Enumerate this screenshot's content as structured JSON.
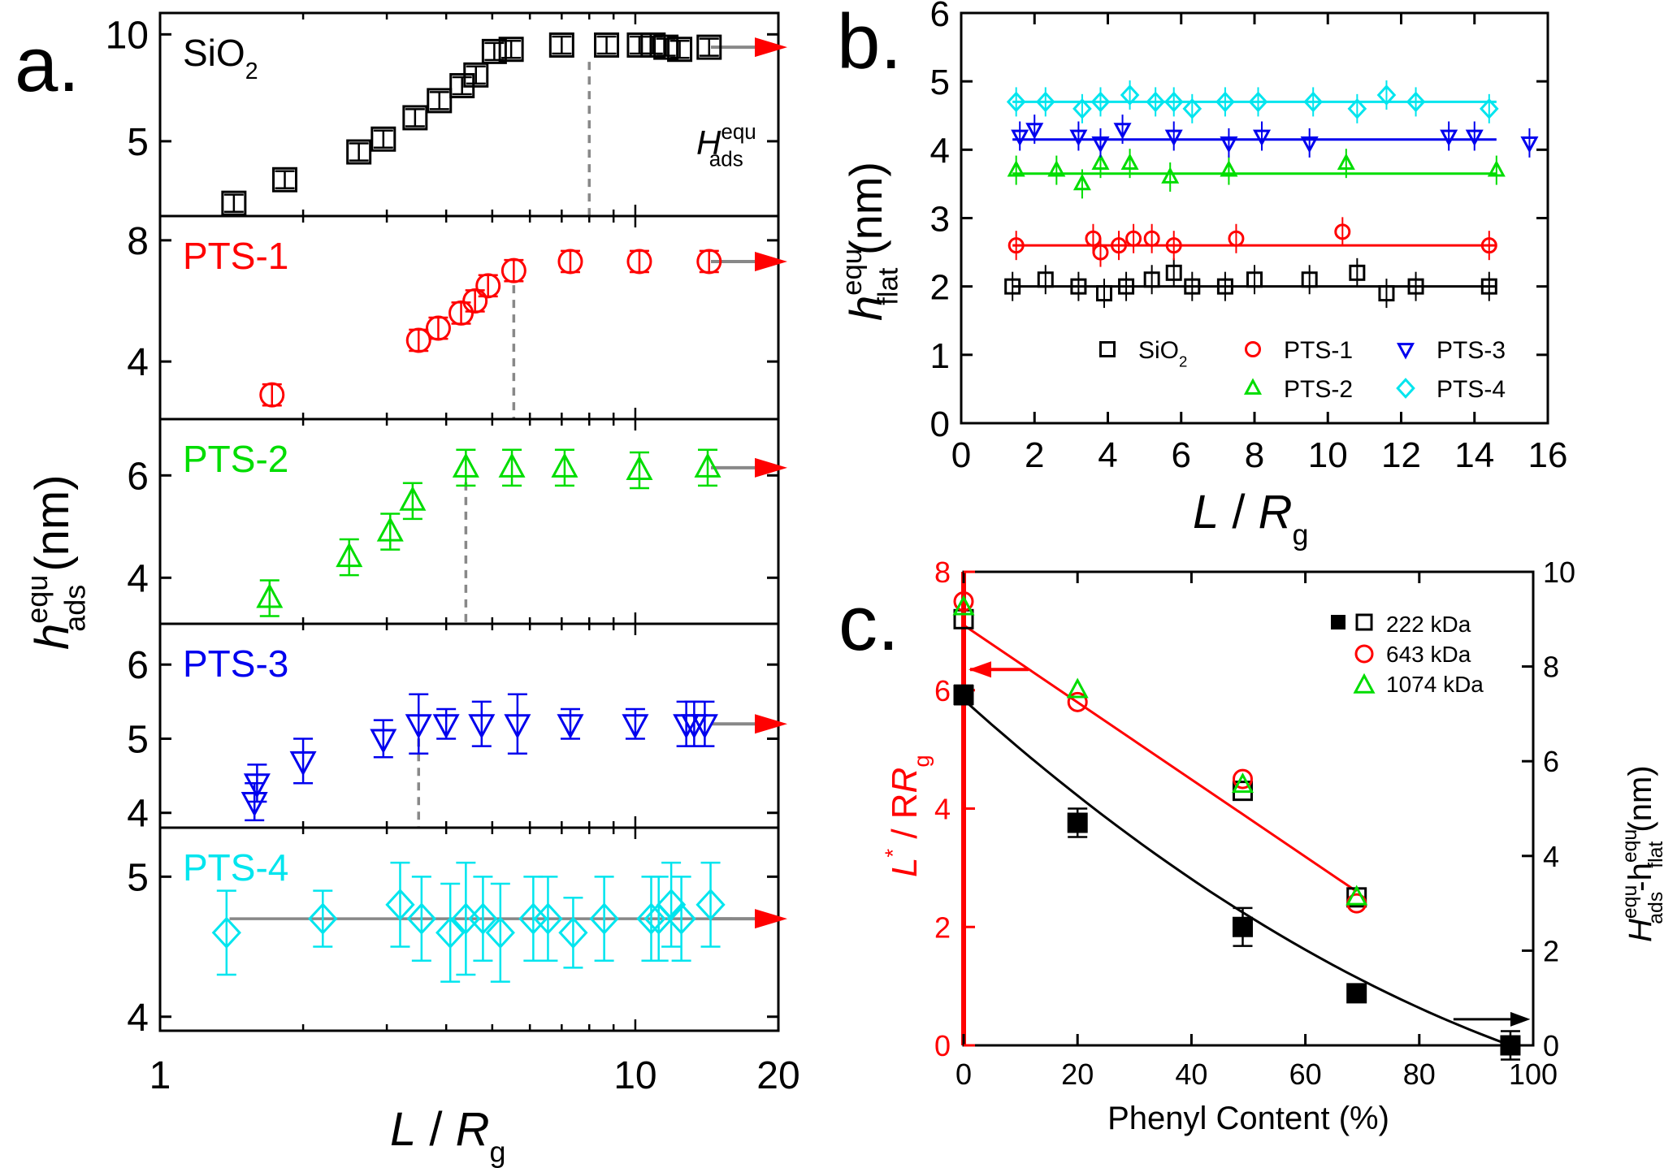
{
  "panel_letters": {
    "a": "a.",
    "b": "b.",
    "c": "c."
  },
  "colors": {
    "black": "#000000",
    "red": "#ff0000",
    "green": "#00dd00",
    "blue": "#0000ee",
    "cyan": "#00e5ee",
    "gray": "#888888"
  },
  "chart_data": [
    {
      "id": "a",
      "type": "scatter",
      "xscale": "log",
      "xlim": [
        1,
        20
      ],
      "xticks": [
        1,
        10,
        20
      ],
      "xlabel_main": "L / R",
      "xlabel_sub": "g",
      "ylabel_main": "h",
      "ylabel_sup": "equ",
      "ylabel_sub": "ads",
      "ylabel_unit": "(nm)",
      "annotation": {
        "main": "H",
        "sup": "equ",
        "sub": "ads"
      },
      "arrows_to_right": true,
      "subplots": [
        {
          "name": "SiO2",
          "label_main": "SiO",
          "label_sub": "2",
          "color": "black",
          "marker": "square",
          "ylim": [
            1.5,
            11
          ],
          "yticks": [
            5,
            10
          ],
          "x": [
            1.43,
            1.83,
            2.62,
            2.95,
            3.44,
            3.87,
            4.32,
            4.62,
            5.05,
            5.48,
            7.0,
            8.7,
            10.2,
            10.9,
            11.6,
            12.4,
            14.3
          ],
          "y": [
            2.1,
            3.2,
            4.5,
            5.1,
            6.1,
            6.9,
            7.6,
            8.1,
            9.2,
            9.3,
            9.5,
            9.5,
            9.5,
            9.5,
            9.4,
            9.3,
            9.4
          ],
          "err": [
            0.4,
            0.4,
            0.4,
            0.4,
            0.4,
            0.4,
            0.4,
            0.4,
            0.4,
            0.4,
            0.4,
            0.4,
            0.4,
            0.4,
            0.4,
            0.4,
            0.4
          ],
          "plateau_start": 8.0
        },
        {
          "name": "PTS-1",
          "label_main": "PTS-1",
          "label_sub": "",
          "color": "red",
          "marker": "circle",
          "ylim": [
            2.1,
            8.8
          ],
          "yticks": [
            4,
            8
          ],
          "x": [
            1.72,
            3.5,
            3.85,
            4.3,
            4.6,
            4.9,
            5.55,
            7.3,
            10.2,
            14.3
          ],
          "y": [
            2.9,
            4.7,
            5.1,
            5.6,
            6.0,
            6.5,
            7.0,
            7.3,
            7.3,
            7.3
          ],
          "err": [
            0.35,
            0.35,
            0.35,
            0.35,
            0.35,
            0.35,
            0.35,
            0.35,
            0.35,
            0.35
          ],
          "plateau_start": 5.55
        },
        {
          "name": "PTS-2",
          "label_main": "PTS-2",
          "label_sub": "",
          "color": "green",
          "marker": "triangle-up",
          "ylim": [
            3.1,
            7.1
          ],
          "yticks": [
            4,
            6
          ],
          "x": [
            1.7,
            2.5,
            3.05,
            3.4,
            4.4,
            5.5,
            7.1,
            10.2,
            14.2
          ],
          "y": [
            3.6,
            4.4,
            4.9,
            5.5,
            6.15,
            6.15,
            6.15,
            6.1,
            6.15
          ],
          "err": [
            0.35,
            0.35,
            0.35,
            0.35,
            0.35,
            0.35,
            0.35,
            0.35,
            0.35
          ],
          "plateau_start": 4.4
        },
        {
          "name": "PTS-3",
          "label_main": "PTS-3",
          "label_sub": "",
          "color": "blue",
          "marker": "triangle-down",
          "ylim": [
            3.8,
            6.55
          ],
          "yticks": [
            4,
            5,
            6
          ],
          "x": [
            1.58,
            1.6,
            2.0,
            2.95,
            3.5,
            4.0,
            4.75,
            5.65,
            7.3,
            10.0,
            12.8,
            13.3,
            14.0
          ],
          "y": [
            4.15,
            4.4,
            4.7,
            5.0,
            5.2,
            5.2,
            5.2,
            5.2,
            5.2,
            5.2,
            5.2,
            5.2,
            5.2
          ],
          "err": [
            0.25,
            0.25,
            0.3,
            0.25,
            0.4,
            0.2,
            0.3,
            0.4,
            0.2,
            0.2,
            0.3,
            0.3,
            0.3
          ],
          "plateau_start": 3.5
        },
        {
          "name": "PTS-4",
          "label_main": "PTS-4",
          "label_sub": "",
          "color": "cyan",
          "marker": "diamond",
          "ylim": [
            3.9,
            5.35
          ],
          "yticks": [
            4,
            5
          ],
          "x": [
            1.38,
            2.2,
            3.2,
            3.55,
            4.08,
            4.4,
            4.78,
            5.2,
            6.1,
            6.55,
            7.4,
            8.6,
            10.8,
            11.2,
            11.9,
            12.5,
            14.4
          ],
          "y": [
            4.6,
            4.7,
            4.8,
            4.7,
            4.6,
            4.7,
            4.7,
            4.6,
            4.7,
            4.7,
            4.6,
            4.7,
            4.7,
            4.7,
            4.8,
            4.7,
            4.8
          ],
          "err": [
            0.3,
            0.2,
            0.3,
            0.3,
            0.35,
            0.4,
            0.3,
            0.35,
            0.3,
            0.3,
            0.25,
            0.3,
            0.3,
            0.3,
            0.3,
            0.3,
            0.3
          ],
          "plateau_start": null,
          "flat_line": 4.7
        }
      ]
    },
    {
      "id": "b",
      "type": "scatter",
      "xlim": [
        0,
        16
      ],
      "ylim": [
        0,
        6
      ],
      "xticks": [
        0,
        2,
        4,
        6,
        8,
        10,
        12,
        14,
        16
      ],
      "yticks": [
        0,
        1,
        2,
        3,
        4,
        5,
        6
      ],
      "xlabel_main": "L / R",
      "xlabel_sub": "g",
      "ylabel_main": "h",
      "ylabel_sup": "equ",
      "ylabel_sub": "flat",
      "ylabel_unit": "(nm)",
      "series": [
        {
          "name": "SiO2",
          "label_main": "SiO",
          "label_sub": "2",
          "color": "black",
          "marker": "square",
          "fit": 2.0,
          "x": [
            1.4,
            2.3,
            3.2,
            3.9,
            4.5,
            5.2,
            5.8,
            6.3,
            7.2,
            8.0,
            9.5,
            10.8,
            11.6,
            12.4,
            14.4
          ],
          "y": [
            2.0,
            2.1,
            2.0,
            1.9,
            2.0,
            2.1,
            2.2,
            2.0,
            2.0,
            2.1,
            2.1,
            2.2,
            1.9,
            2.0,
            2.0
          ]
        },
        {
          "name": "PTS-1",
          "label_main": "PTS-1",
          "label_sub": "",
          "color": "red",
          "marker": "circle",
          "fit": 2.6,
          "x": [
            1.5,
            3.6,
            3.8,
            4.3,
            4.7,
            5.2,
            5.8,
            7.5,
            10.4,
            14.4
          ],
          "y": [
            2.6,
            2.7,
            2.5,
            2.6,
            2.7,
            2.7,
            2.6,
            2.7,
            2.8,
            2.6
          ]
        },
        {
          "name": "PTS-2",
          "label_main": "PTS-2",
          "label_sub": "",
          "color": "green",
          "marker": "triangle-up",
          "fit": 3.65,
          "x": [
            1.5,
            2.6,
            3.3,
            3.8,
            4.6,
            5.7,
            7.3,
            10.5,
            14.6
          ],
          "y": [
            3.7,
            3.7,
            3.5,
            3.8,
            3.8,
            3.6,
            3.7,
            3.8,
            3.7
          ]
        },
        {
          "name": "PTS-3",
          "label_main": "PTS-3",
          "label_sub": "",
          "color": "blue",
          "marker": "triangle-down",
          "fit": 4.15,
          "x": [
            1.6,
            2.0,
            3.2,
            3.8,
            4.4,
            5.8,
            7.3,
            8.2,
            9.5,
            13.3,
            14.0,
            15.5
          ],
          "y": [
            4.2,
            4.3,
            4.2,
            4.1,
            4.3,
            4.2,
            4.1,
            4.2,
            4.1,
            4.2,
            4.2,
            4.1
          ]
        },
        {
          "name": "PTS-4",
          "label_main": "PTS-4",
          "label_sub": "",
          "color": "cyan",
          "marker": "diamond",
          "fit": 4.7,
          "x": [
            1.5,
            2.3,
            3.3,
            3.8,
            4.6,
            5.3,
            5.8,
            6.3,
            7.2,
            8.1,
            9.6,
            10.8,
            11.6,
            12.4,
            14.4
          ],
          "y": [
            4.7,
            4.7,
            4.6,
            4.7,
            4.8,
            4.7,
            4.7,
            4.6,
            4.7,
            4.7,
            4.7,
            4.6,
            4.8,
            4.7,
            4.6
          ]
        }
      ]
    },
    {
      "id": "c",
      "type": "scatter",
      "xlim": [
        0,
        100
      ],
      "xticks": [
        0,
        20,
        40,
        60,
        80,
        100
      ],
      "xlabel": "Phenyl Content (%)",
      "ylim_left": [
        0,
        8
      ],
      "yticks_left": [
        0,
        2,
        4,
        6,
        8
      ],
      "ylim_right": [
        0,
        10
      ],
      "yticks_right": [
        0,
        2,
        4,
        6,
        8,
        10
      ],
      "ylabel_left_main": "L",
      "ylabel_left_sup": "*",
      "ylabel_left_mid": " / R",
      "ylabel_left_sub": "g",
      "ylabel_right_a": "H",
      "ylabel_right_a_sup": "equ",
      "ylabel_right_a_sub": "ads",
      "ylabel_right_b": "-h",
      "ylabel_right_b_sup": "equ",
      "ylabel_right_b_sub": "flat",
      "ylabel_right_unit": "(nm)",
      "legend": [
        "222 kDa",
        "643 kDa",
        "1074 kDa"
      ],
      "series": [
        {
          "name": "222 kDa",
          "axis": "right",
          "color": "black",
          "marker": "filled-square",
          "x": [
            0,
            20,
            49,
            69,
            96
          ],
          "y": [
            7.4,
            4.7,
            2.5,
            1.1,
            0.0
          ],
          "err": [
            0.2,
            0.3,
            0.4,
            0.15,
            0.3
          ]
        },
        {
          "name": "222 kDa",
          "axis": "left",
          "color": "black",
          "marker": "open-square",
          "x": [
            0,
            49,
            69
          ],
          "y": [
            7.2,
            4.3,
            2.5
          ]
        },
        {
          "name": "643 kDa",
          "axis": "left",
          "color": "red",
          "marker": "circle",
          "x": [
            0,
            20,
            49,
            69
          ],
          "y": [
            7.5,
            5.8,
            4.5,
            2.4
          ]
        },
        {
          "name": "1074 kDa",
          "axis": "left",
          "color": "green",
          "marker": "triangle-up",
          "x": [
            0,
            20,
            49,
            69
          ],
          "y": [
            7.4,
            6.0,
            4.4,
            2.5
          ]
        }
      ],
      "fit_linear_left": {
        "x": [
          0,
          69
        ],
        "y": [
          7.1,
          2.6
        ]
      },
      "fit_curve_right": {
        "x": [
          0,
          96
        ],
        "y0": 7.3,
        "y1": 0.0,
        "curvature": 0.42
      }
    }
  ]
}
